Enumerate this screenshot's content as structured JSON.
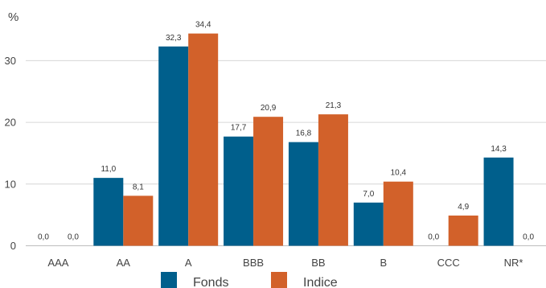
{
  "chart_data": {
    "type": "bar",
    "ylabel": "%",
    "ylim": [
      0,
      36
    ],
    "yticks": [
      0,
      10,
      20,
      30
    ],
    "ytick_labels": [
      "0",
      "10",
      "20",
      "30"
    ],
    "categories": [
      "AAA",
      "AA",
      "A",
      "BBB",
      "BB",
      "B",
      "CCC",
      "NR*"
    ],
    "series": [
      {
        "name": "Fonds",
        "color": "#005f8c",
        "values": [
          0.0,
          11.0,
          32.3,
          17.7,
          16.8,
          7.0,
          0.0,
          14.3
        ],
        "labels": [
          "0,0",
          "11,0",
          "32,3",
          "17,7",
          "16,8",
          "7,0",
          "0,0",
          "14,3"
        ]
      },
      {
        "name": "Indice",
        "color": "#d2612a",
        "values": [
          0.0,
          8.1,
          34.4,
          20.9,
          21.3,
          10.4,
          4.9,
          0.0
        ],
        "labels": [
          "0,0",
          "8,1",
          "34,4",
          "20,9",
          "21,3",
          "10,4",
          "4,9",
          "0,0"
        ]
      }
    ],
    "grid": true,
    "legend_position": "bottom-center"
  }
}
